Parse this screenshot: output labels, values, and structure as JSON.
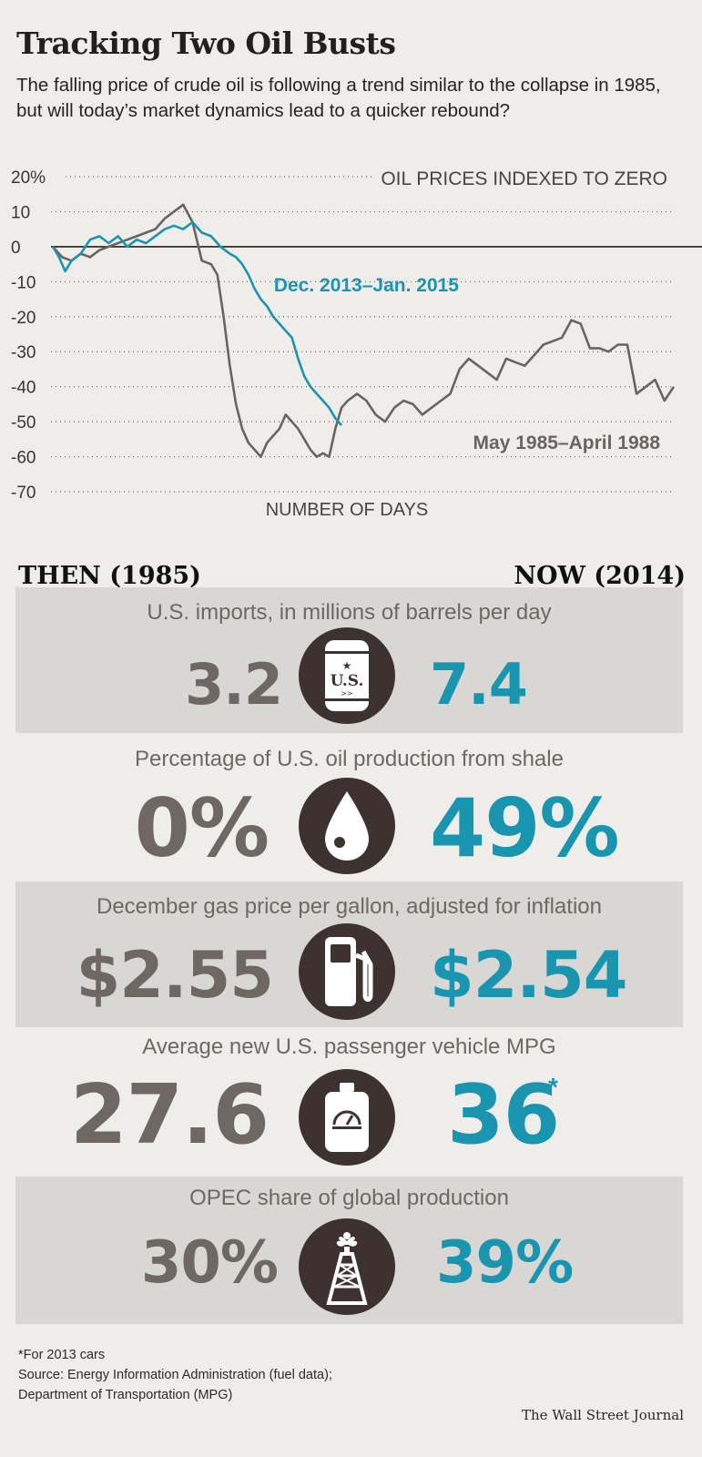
{
  "header": {
    "title": "Tracking Two Oil Busts",
    "subtitle": "The falling price of crude oil is following a trend similar to the collapse in 1985, but will today’s market dynamics lead to a quicker rebound?"
  },
  "chart_data": {
    "type": "line",
    "title": "OIL PRICES INDEXED TO ZERO",
    "xlabel": "NUMBER OF DAYS",
    "ylabel": "",
    "ylim": [
      -70,
      20
    ],
    "y_ticks": [
      "20%",
      "10",
      "0",
      "-10",
      "-20",
      "-30",
      "-40",
      "-50",
      "-60",
      "-70"
    ],
    "x_range": [
      0,
      100
    ],
    "colors": {
      "series_1985": "#6b6360",
      "series_2013": "#1a95b0",
      "zero_line": "#231f1e",
      "grid": "#6b6360"
    },
    "series": [
      {
        "name": "May 1985–April 1988",
        "x": [
          0,
          1.5,
          3,
          4.5,
          6,
          7.5,
          9,
          10.5,
          12,
          13.5,
          15,
          16.5,
          18,
          19.5,
          21,
          22.5,
          24,
          25.5,
          26.5,
          27.5,
          28.5,
          29.5,
          30.5,
          31.5,
          32.5,
          33.5,
          34.5,
          35.5,
          36.5,
          37.5,
          38.5,
          39.5,
          40.5,
          41.5,
          42.5,
          43.5,
          44.5,
          45.5,
          46.5,
          47.5,
          49,
          50.5,
          52,
          53.5,
          55,
          56.5,
          58,
          59.5,
          61,
          62.5,
          64,
          65.5,
          67,
          68.5,
          70,
          71.5,
          73,
          74.5,
          76,
          77.5,
          79,
          80.5,
          82,
          83.5,
          85,
          86.5,
          88,
          89.5,
          91,
          92.5,
          94,
          95.5,
          97,
          98.5,
          100
        ],
        "y": [
          0,
          -3,
          -4,
          -2,
          -3,
          -1,
          0,
          1,
          2,
          3,
          4,
          5,
          8,
          10,
          12,
          7,
          -4,
          -5,
          -8,
          -20,
          -34,
          -45,
          -52,
          -56,
          -58,
          -60,
          -56,
          -54,
          -52,
          -48,
          -50,
          -52,
          -55,
          -58,
          -60,
          -59,
          -60,
          -52,
          -46,
          -44,
          -42,
          -44,
          -48,
          -50,
          -46,
          -44,
          -45,
          -48,
          -46,
          -44,
          -42,
          -35,
          -32,
          -34,
          -36,
          -38,
          -32,
          -33,
          -34,
          -31,
          -28,
          -27,
          -26,
          -21,
          -22,
          -29,
          -29,
          -30,
          -28,
          -28,
          -42,
          -40,
          -38,
          -44,
          -40
        ]
      },
      {
        "name": "Dec. 2013–Jan. 2015",
        "x": [
          0,
          1,
          2,
          3,
          4.5,
          6,
          7.5,
          9,
          10.5,
          12,
          13.5,
          15,
          16.5,
          18,
          19.5,
          21,
          22.5,
          24,
          25.5,
          27,
          28.5,
          29.5,
          30.5,
          31.5,
          32.5,
          33.5,
          34.5,
          35.5,
          36.5,
          37.5,
          38.5,
          39.5,
          40.5,
          41.5,
          42.5,
          43.5,
          44.5,
          45.5,
          46.5
        ],
        "y": [
          0,
          -3,
          -7,
          -4,
          -2,
          2,
          3,
          1,
          3,
          0,
          2,
          1,
          3,
          5,
          6,
          5,
          7,
          4,
          3,
          0,
          -2,
          -3,
          -5,
          -8,
          -12,
          -15,
          -17,
          -20,
          -22,
          -24,
          -26,
          -32,
          -37,
          -40,
          -42,
          -44,
          -46,
          -49,
          -51
        ]
      }
    ]
  },
  "comparison": {
    "then_label": "THEN (1985)",
    "now_label": "NOW (2014)",
    "rows": [
      {
        "title": "U.S. imports, in millions of barrels per day",
        "then": "3.2",
        "now": "7.4",
        "icon": "oil-barrel-icon",
        "barrel_text": "U.S."
      },
      {
        "title": "Percentage of U.S. oil production from shale",
        "then": "0%",
        "now": "49%",
        "icon": "oil-drop-icon"
      },
      {
        "title": "December gas price per gallon, adjusted for inflation",
        "then": "$2.55",
        "now": "$2.54",
        "icon": "gas-pump-icon"
      },
      {
        "title": "Average new U.S. passenger vehicle MPG",
        "then": "27.6",
        "now": "36",
        "now_mark": "*",
        "icon": "fuel-can-gauge-icon"
      },
      {
        "title": "OPEC share of global production",
        "then": "30%",
        "now": "39%",
        "icon": "oil-derrick-icon"
      }
    ]
  },
  "footer": {
    "note": "*For 2013 cars",
    "source_line1": "Source: Energy Information Administration (fuel data);",
    "source_line2": "Department of Transportation (MPG)",
    "credit": "The Wall Street Journal"
  }
}
